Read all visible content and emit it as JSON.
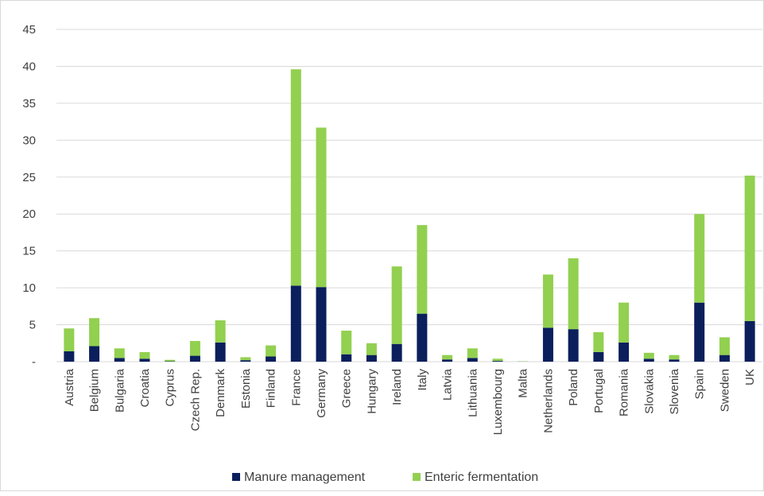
{
  "chart_data": {
    "type": "bar",
    "stacked": true,
    "categories": [
      "Austria",
      "Belgium",
      "Bulgaria",
      "Croatia",
      "Cyprus",
      "Czech Rep.",
      "Denmark",
      "Estonia",
      "Finland",
      "France",
      "Germany",
      "Greece",
      "Hungary",
      "Ireland",
      "Italy",
      "Latvia",
      "Lithuania",
      "Luxembourg",
      "Malta",
      "Netherlands",
      "Poland",
      "Portugal",
      "Romania",
      "Slovakia",
      "Slovenia",
      "Spain",
      "Sweden",
      "UK"
    ],
    "series": [
      {
        "name": "Manure management",
        "color": "#0a1f5c",
        "values": [
          1.4,
          2.1,
          0.5,
          0.4,
          0.05,
          0.8,
          2.6,
          0.2,
          0.7,
          10.3,
          10.1,
          1.0,
          0.9,
          2.4,
          6.5,
          0.3,
          0.5,
          0.1,
          0.02,
          4.6,
          4.4,
          1.3,
          2.6,
          0.4,
          0.3,
          8.0,
          0.9,
          5.5
        ]
      },
      {
        "name": "Enteric fermentation",
        "color": "#92d050",
        "values": [
          3.1,
          3.8,
          1.3,
          0.9,
          0.2,
          2.0,
          3.0,
          0.4,
          1.5,
          29.3,
          21.6,
          3.2,
          1.6,
          10.5,
          12.0,
          0.6,
          1.3,
          0.3,
          0.03,
          7.2,
          9.6,
          2.7,
          5.4,
          0.8,
          0.6,
          12.0,
          2.4,
          19.7
        ]
      }
    ],
    "ylim": [
      0,
      45
    ],
    "yticks": [
      0,
      5,
      10,
      15,
      20,
      25,
      30,
      35,
      40,
      45
    ],
    "ytick_labels": [
      "-",
      "5",
      "10",
      "15",
      "20",
      "25",
      "30",
      "35",
      "40",
      "45"
    ],
    "grid": true,
    "legend_position": "bottom"
  }
}
